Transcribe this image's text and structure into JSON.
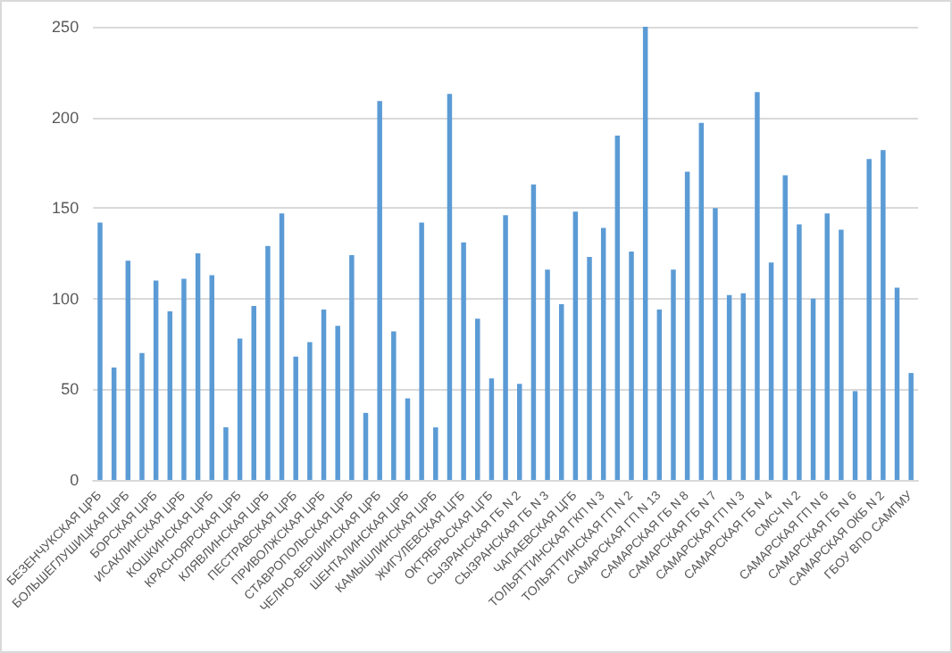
{
  "chart_data": {
    "type": "bar",
    "categories": [
      "БЕЗЕНЧУКСКАЯ ЦРБ",
      null,
      "БОЛЬШЕГЛУШИЦКАЯ ЦРБ",
      null,
      "БОРСКАЯ ЦРБ",
      null,
      "ИСАКЛИНСКАЯ ЦРБ",
      null,
      "КОШКИНСКАЯ ЦРБ",
      null,
      "КРАСНОЯРСКАЯ ЦРБ",
      null,
      "КЛЯВЛИНСКАЯ ЦРБ",
      null,
      "ПЕСТРАВСКАЯ ЦРБ",
      null,
      "ПРИВОЛЖСКАЯ ЦРБ",
      null,
      "СТАВРОПОЛЬСКАЯ ЦРБ",
      null,
      "ЧЕЛНО-ВЕРШИНСКАЯ ЦРБ",
      null,
      "ШЕНТАЛИНСКАЯ ЦРБ",
      null,
      "КАМЫШЛИНСКАЯ ЦРБ",
      null,
      "ЖИГУЛЕВСКАЯ ЦГБ",
      null,
      "ОКТЯБРЬСКАЯ ЦГБ",
      null,
      "СЫЗРАНСКАЯ ГБ N 2",
      null,
      "СЫЗРАНСКАЯ ГБ N 3",
      null,
      "ЧАПАЕВСКАЯ ЦГБ",
      null,
      "ТОЛЬЯТТИНСКАЯ ГКП N 3",
      null,
      "ТОЛЬЯТТИНСКАЯ ГП N 2",
      null,
      "САМАРСКАЯ ГП N 13",
      null,
      "САМАРСКАЯ ГБ N 8",
      null,
      "САМАРСКАЯ ГБ N 7",
      null,
      "САМАРСКАЯ ГП N 3",
      null,
      "САМАРСКАЯ ГБ N 4",
      null,
      "СМСЧ N 2",
      null,
      "САМАРСКАЯ ГП N 6",
      null,
      "САМАРСКАЯ ГБ N 6",
      null,
      "САМАРСКАЯ ОКБ N 2",
      null,
      "ГБОУ ВПО САМГМУ"
    ],
    "values": [
      142,
      62,
      121,
      70,
      110,
      93,
      111,
      125,
      113,
      29,
      78,
      96,
      129,
      147,
      68,
      76,
      94,
      85,
      124,
      37,
      209,
      82,
      45,
      142,
      29,
      213,
      131,
      89,
      56,
      146,
      53,
      163,
      116,
      97,
      148,
      123,
      139,
      190,
      126,
      250,
      94,
      116,
      170,
      197,
      150,
      102,
      103,
      214,
      120,
      168,
      141,
      100,
      147,
      138,
      49,
      177,
      182,
      106,
      59
    ],
    "color": "#5b9bd5",
    "ylim": [
      0,
      250
    ],
    "yticks": [
      0,
      50,
      100,
      150,
      200,
      250
    ],
    "grid": "y"
  }
}
